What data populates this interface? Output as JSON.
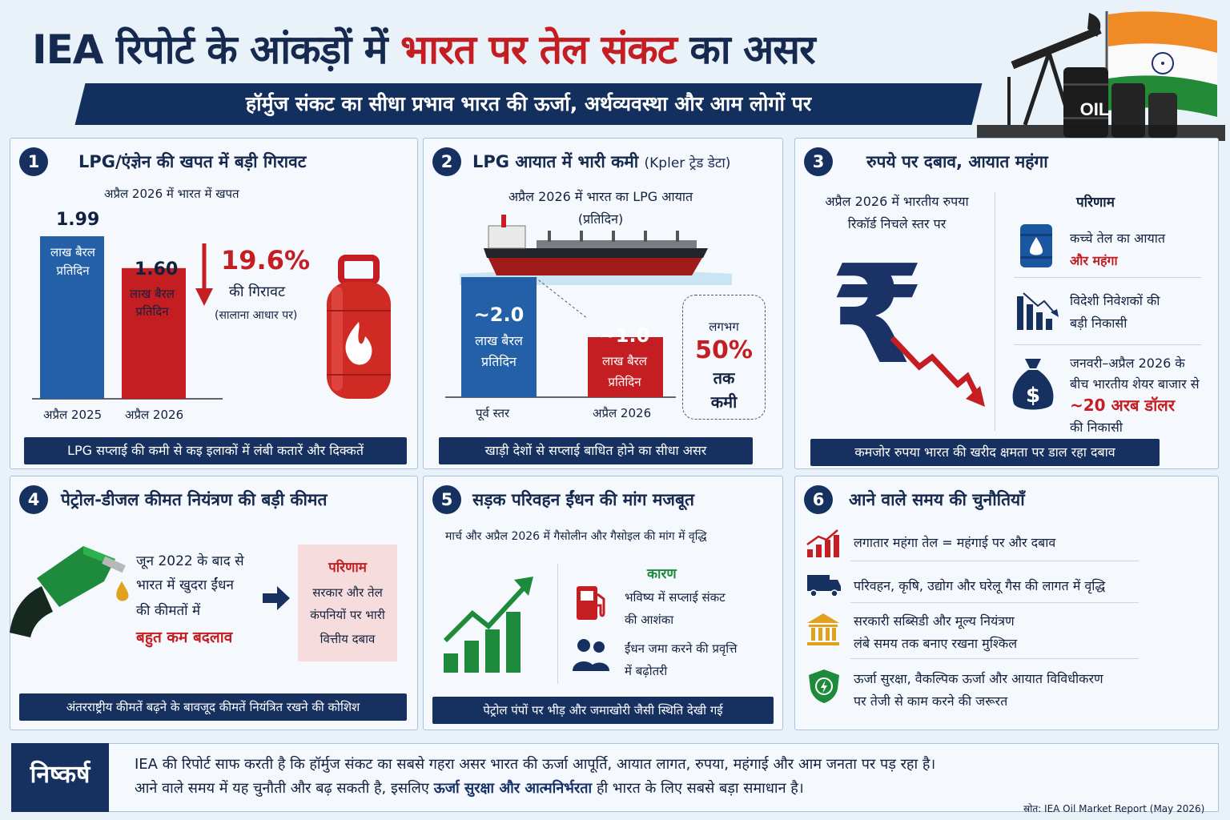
{
  "header": {
    "title_part1": "IEA रिपोर्ट के आंकड़ों में",
    "title_part2": "भारत पर तेल संकट",
    "title_part3": "का असर",
    "subtitle": "हॉर्मुज संकट का सीधा प्रभाव भारत की ऊर्जा, अर्थव्यवस्था और आम लोगों पर",
    "oil_label": "OIL"
  },
  "panel1": {
    "number": "1",
    "title": "LPG/एंज्ञेन की खपत में बड़ी गिरावट",
    "subtitle": "अप्रैल 2026 में भारत में खपत",
    "bars": [
      {
        "category": "अप्रैल 2025",
        "value_label": "1.99",
        "unit": "लाख बैरल प्रतिदिन"
      },
      {
        "category": "अप्रैल 2026",
        "value_label": "1.60",
        "unit": "लाख बैरल प्रतिदिन"
      }
    ],
    "change_value": "19.6%",
    "change_label": "की गिरावट",
    "change_note": "(सालाना आधार पर)",
    "banner": "LPG सप्लाई की कमी से कइ इलाकों में लंबी कतारें और दिक्कतें"
  },
  "panel2": {
    "number": "2",
    "title": "LPG आयात में भारी कमी",
    "title_note": "(Kpler ट्रेड डेटा)",
    "subtitle_line1": "अप्रैल 2026 में भारत का LPG आयात",
    "subtitle_line2": "(प्रतिदिन)",
    "bars": [
      {
        "category": "पूर्व स्तर",
        "value_label": "~2.0",
        "unit_line1": "लाख बैरल",
        "unit_line2": "प्रतिदिन"
      },
      {
        "category": "अप्रैल 2026",
        "value_label": "~1.0",
        "unit_line1": "लाख बैरल",
        "unit_line2": "प्रतिदिन"
      }
    ],
    "callout_top": "लगभग",
    "callout_value": "50%",
    "callout_line1": "तक",
    "callout_line2": "कमी",
    "banner": "खाड़ी देशों से सप्लाई बाधित होने का सीधा असर"
  },
  "panel3": {
    "number": "3",
    "title": "रुपये पर दबाव, आयात महंगा",
    "left_line1": "अप्रैल 2026 में भारतीय रुपया",
    "left_line2": "रिकॉर्ड निचले स्तर पर",
    "rupee_symbol": "₹",
    "results_heading": "परिणाम",
    "items": [
      {
        "line1": "कच्चे तेल का आयात",
        "line2": "और महंगा",
        "icon": "oil-drop-barrel-icon"
      },
      {
        "line1": "विदेशी निवेशकों की",
        "line2": "बड़ी निकासी",
        "icon": "declining-bars-icon"
      },
      {
        "line1": "जनवरी–अप्रैल 2026 के",
        "line2": "बीच भारतीय शेयर बाजार से",
        "line3": "~20 अरब डॉलर",
        "line4": "की निकासी",
        "icon": "money-bag-icon"
      }
    ],
    "money_symbol": "$",
    "banner": "कमजोर रुपया भारत की खरीद क्षमता पर डाल रहा दबाव"
  },
  "panel4": {
    "number": "4",
    "title": "पेट्रोल-डीजल कीमत नियंत्रण की बड़ी कीमत",
    "text_line1": "जून 2022 के बाद से",
    "text_line2": "भारत में खुदरा ईंधन",
    "text_line3": "की कीमतों में",
    "text_line4": "बहुत कम बदलाव",
    "result_heading": "परिणाम",
    "result_line1": "सरकार और तेल",
    "result_line2": "कंपनियों पर भारी",
    "result_line3": "वित्तीय दबाव",
    "banner": "अंतरराष्ट्रीय कीमतें बढ़ने के बावजूद कीमतें नियंत्रित रखने की कोशिश"
  },
  "panel5": {
    "number": "5",
    "title": "सड़क परिवहन ईंधन की मांग मजबूत",
    "subtitle": "मार्च और अप्रैल 2026 में गैसोलीन और गैसोइल की मांग में वृद्धि",
    "reasons_heading": "कारण",
    "reason1_line1": "भविष्य में सप्लाई संकट",
    "reason1_line2": "की आशंका",
    "reason2_line1": "ईंधन जमा करने की प्रवृत्ति",
    "reason2_line2": "में बढ़ोतरी",
    "banner": "पेट्रोल पंपों पर भीड़ और जमाखोरी जैसी स्थिति देखी गई"
  },
  "panel6": {
    "number": "6",
    "title": "आने वाले समय की चुनौतियाँ",
    "items": [
      {
        "line1": "लगातार महंगा तेल = महंगाई पर और दबाव",
        "line2": "",
        "icon": "rising-chart-icon"
      },
      {
        "line1": "परिवहन, कृषि, उद्योग और घरेलू गैस की लागत में वृद्धि",
        "line2": "",
        "icon": "truck-icon"
      },
      {
        "line1": "सरकारी सब्सिडी और मूल्य नियंत्रण",
        "line2": "लंबे समय तक बनाए रखना मुश्किल",
        "icon": "government-building-icon"
      },
      {
        "line1": "ऊर्जा सुरक्षा, वैकल्पिक ऊर्जा और आयात विविधीकरण",
        "line2": "पर तेजी से काम करने की जरूरत",
        "icon": "energy-shield-icon"
      }
    ]
  },
  "conclusion": {
    "label": "निष्कर्ष",
    "line1": "IEA की रिपोर्ट साफ करती है कि हॉर्मुज संकट का सबसे गहरा असर भारत की ऊर्जा आपूर्ति, आयात लागत, रुपया, महंगाई और आम जनता पर पड़ रहा है।",
    "line2_part1": "आने वाले समय में यह चुनौती और बढ़ सकती है, इसलिए",
    "line2_highlight": "ऊर्जा सुरक्षा और आत्मनिर्भरता",
    "line2_part2": "ही भारत के लिए सबसे बड़ा समाधान है।",
    "source": "स्रोत: IEA Oil Market Report (May 2026)"
  },
  "colors": {
    "navy": "#16315f",
    "blue_bar": "#2460a7",
    "red": "#c41e23",
    "green": "#1e8a3c"
  },
  "chart_data": [
    {
      "type": "bar",
      "title": "LPG/एंज्ञेन की खपत में बड़ी गिरावट",
      "subtitle": "अप्रैल 2026 में भारत में खपत",
      "categories": [
        "अप्रैल 2025",
        "अप्रैल 2026"
      ],
      "values": [
        1.99,
        1.6
      ],
      "unit": "लाख बैरल प्रतिदिन",
      "annotation": "19.6% की गिरावट (सालाना आधार पर)"
    },
    {
      "type": "bar",
      "title": "LPG आयात में भारी कमी",
      "subtitle": "अप्रैल 2026 में भारत का LPG आयात (प्रतिदिन)",
      "categories": [
        "पूर्व स्तर",
        "अप्रैल 2026"
      ],
      "values": [
        2.0,
        1.0
      ],
      "unit": "लाख बैरल प्रतिदिन",
      "annotation": "लगभग 50% तक कमी"
    }
  ]
}
